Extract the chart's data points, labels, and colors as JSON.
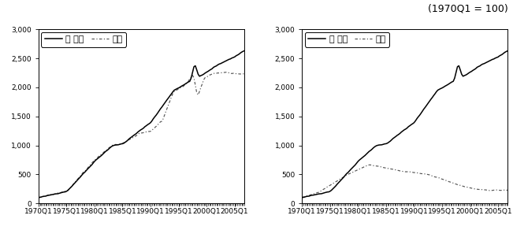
{
  "title_annotation": "(1970Q1 = 100)",
  "ylim": [
    0,
    3000
  ],
  "yticks": [
    0,
    500,
    1000,
    1500,
    2000,
    2500,
    3000
  ],
  "xtick_labels": [
    "1970Q1",
    "1975Q1",
    "1980Q1",
    "1985Q1",
    "1990Q1",
    "1995Q1",
    "2000Q1",
    "2005Q1"
  ],
  "xtick_years": [
    1970,
    1975,
    1980,
    1985,
    1990,
    1995,
    2000,
    2005
  ],
  "left_legend_1": "전 부문",
  "left_legend_2": "방송",
  "right_legend_1": "전 부문",
  "right_legend_2": "통신",
  "line_color_solid": "#000000",
  "line_color_dashed": "#555555",
  "background_color": "#ffffff",
  "font_size_annotation": 9,
  "font_size_tick": 6.5,
  "font_size_legend": 8
}
